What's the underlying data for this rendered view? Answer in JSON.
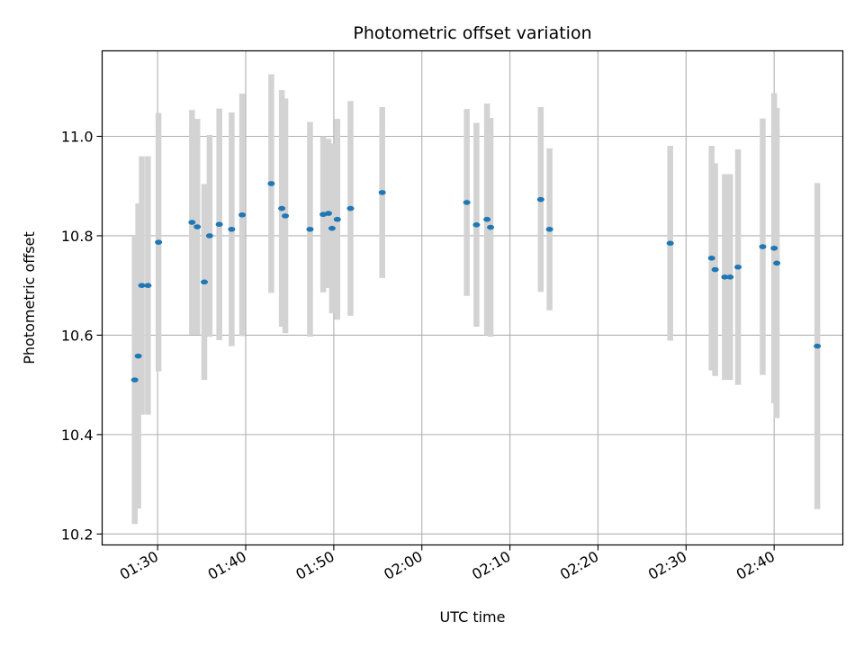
{
  "chart_data": {
    "type": "scatter",
    "title": "Photometric offset variation",
    "xlabel": "UTC time",
    "ylabel": "Photometric offset",
    "x_ticks": [
      "01:30",
      "01:40",
      "01:50",
      "02:00",
      "02:10",
      "02:20",
      "02:30",
      "02:40"
    ],
    "y_ticks": [
      "10.2",
      "10.4",
      "10.6",
      "10.8",
      "11.0"
    ],
    "x_tick_minutes": [
      90,
      100,
      110,
      120,
      130,
      140,
      150,
      160
    ],
    "y_tick_values": [
      10.2,
      10.4,
      10.6,
      10.8,
      11.0
    ],
    "xlim_minutes": [
      83.7,
      167.8
    ],
    "ylim": [
      10.178,
      11.172
    ],
    "grid": true,
    "errorbar_color": "#d3d3d3",
    "marker_color": "#1f77b4",
    "points": [
      {
        "t": 87.4,
        "y": 10.51,
        "err": 0.29
      },
      {
        "t": 87.8,
        "y": 10.558,
        "err": 0.307
      },
      {
        "t": 88.2,
        "y": 10.7,
        "err": 0.26
      },
      {
        "t": 88.9,
        "y": 10.7,
        "err": 0.26
      },
      {
        "t": 90.1,
        "y": 10.787,
        "err": 0.26
      },
      {
        "t": 93.9,
        "y": 10.827,
        "err": 0.226
      },
      {
        "t": 94.5,
        "y": 10.818,
        "err": 0.217
      },
      {
        "t": 95.3,
        "y": 10.707,
        "err": 0.197
      },
      {
        "t": 95.9,
        "y": 10.8,
        "err": 0.203
      },
      {
        "t": 97.0,
        "y": 10.823,
        "err": 0.233
      },
      {
        "t": 98.4,
        "y": 10.813,
        "err": 0.235
      },
      {
        "t": 99.6,
        "y": 10.842,
        "err": 0.244
      },
      {
        "t": 102.9,
        "y": 10.905,
        "err": 0.22
      },
      {
        "t": 104.1,
        "y": 10.855,
        "err": 0.238
      },
      {
        "t": 104.5,
        "y": 10.84,
        "err": 0.236
      },
      {
        "t": 107.3,
        "y": 10.813,
        "err": 0.216
      },
      {
        "t": 108.8,
        "y": 10.843,
        "err": 0.157
      },
      {
        "t": 109.4,
        "y": 10.845,
        "err": 0.15
      },
      {
        "t": 109.8,
        "y": 10.815,
        "err": 0.171
      },
      {
        "t": 110.4,
        "y": 10.833,
        "err": 0.202
      },
      {
        "t": 111.9,
        "y": 10.855,
        "err": 0.216
      },
      {
        "t": 115.5,
        "y": 10.887,
        "err": 0.172
      },
      {
        "t": 125.1,
        "y": 10.867,
        "err": 0.188
      },
      {
        "t": 126.2,
        "y": 10.822,
        "err": 0.205
      },
      {
        "t": 127.4,
        "y": 10.833,
        "err": 0.233
      },
      {
        "t": 127.8,
        "y": 10.817,
        "err": 0.22
      },
      {
        "t": 133.5,
        "y": 10.873,
        "err": 0.186
      },
      {
        "t": 134.5,
        "y": 10.813,
        "err": 0.163
      },
      {
        "t": 148.2,
        "y": 10.785,
        "err": 0.196
      },
      {
        "t": 152.9,
        "y": 10.755,
        "err": 0.226
      },
      {
        "t": 153.3,
        "y": 10.732,
        "err": 0.214
      },
      {
        "t": 154.4,
        "y": 10.717,
        "err": 0.207
      },
      {
        "t": 155.0,
        "y": 10.717,
        "err": 0.207
      },
      {
        "t": 155.9,
        "y": 10.737,
        "err": 0.237
      },
      {
        "t": 158.7,
        "y": 10.778,
        "err": 0.258
      },
      {
        "t": 160.0,
        "y": 10.775,
        "err": 0.312
      },
      {
        "t": 160.3,
        "y": 10.745,
        "err": 0.312
      },
      {
        "t": 164.9,
        "y": 10.578,
        "err": 0.328
      }
    ]
  }
}
